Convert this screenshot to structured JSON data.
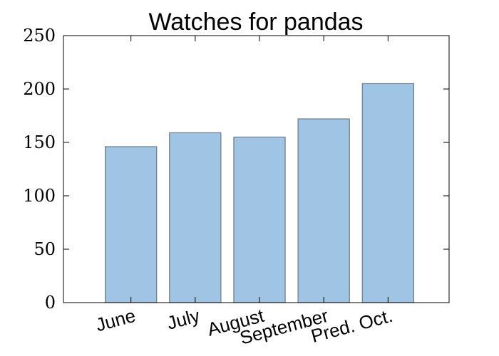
{
  "chart_data": {
    "type": "bar",
    "title": "Watches for pandas",
    "categories": [
      "June",
      "July",
      "August",
      "September",
      "Pred. Oct."
    ],
    "values": [
      146,
      159,
      155,
      172,
      205
    ],
    "xlabel": "",
    "ylabel": "",
    "ylim": [
      0,
      250
    ],
    "yticks": [
      0,
      50,
      100,
      150,
      200,
      250
    ],
    "ytick_labels": [
      "0",
      "50",
      "100",
      "150",
      "200",
      "250"
    ],
    "grid": false,
    "legend": "none",
    "colors": {
      "bar_fill": "#a0c4e4",
      "bar_edge": "#6e7a86",
      "axes": "#000000",
      "background": "#ffffff"
    }
  }
}
